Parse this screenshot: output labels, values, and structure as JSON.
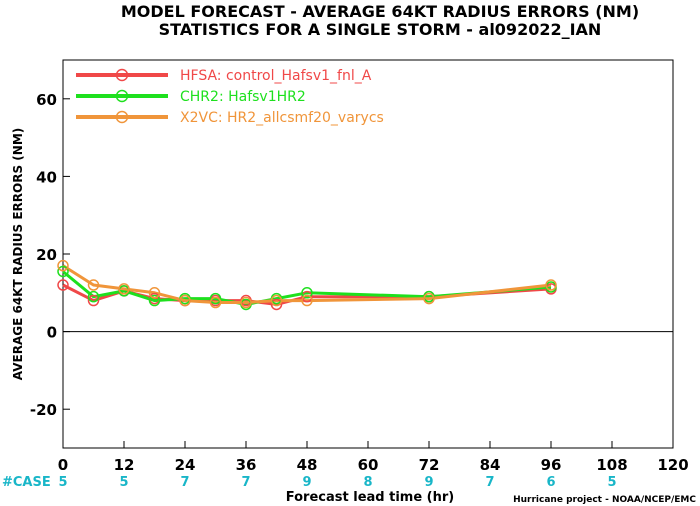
{
  "chart_data": {
    "type": "line",
    "title_line1": "MODEL FORECAST - AVERAGE 64KT RADIUS ERRORS (NM)",
    "title_line2": "STATISTICS FOR A SINGLE STORM - al092022_IAN",
    "ylabel": "AVERAGE 64KT RADIUS ERRORS (NM)",
    "xlabel": "Forecast lead time (hr)",
    "footer": "Hurricane project - NOAA/NCEP/EMC",
    "xlim": [
      0,
      120
    ],
    "ylim": [
      -30,
      70
    ],
    "x_ticks": [
      0,
      12,
      24,
      36,
      48,
      60,
      72,
      84,
      96,
      108,
      120
    ],
    "y_ticks": [
      -20,
      0,
      20,
      40,
      60
    ],
    "zero_line": true,
    "legend_position": "top-left",
    "case_label": "#CASE",
    "case_color": "#19b6c8",
    "cases": [
      {
        "x": 0,
        "n": "5"
      },
      {
        "x": 12,
        "n": "5"
      },
      {
        "x": 24,
        "n": "7"
      },
      {
        "x": 36,
        "n": "7"
      },
      {
        "x": 48,
        "n": "9"
      },
      {
        "x": 60,
        "n": "8"
      },
      {
        "x": 72,
        "n": "9"
      },
      {
        "x": 84,
        "n": "7"
      },
      {
        "x": 96,
        "n": "6"
      },
      {
        "x": 108,
        "n": "5"
      }
    ],
    "series": [
      {
        "name": "HFSA: control_Hafsv1_fnl_A",
        "color": "#f04848",
        "points": [
          [
            0,
            12
          ],
          [
            6,
            8
          ],
          [
            12,
            10.5
          ],
          [
            18,
            8.5
          ],
          [
            24,
            8
          ],
          [
            30,
            8
          ],
          [
            36,
            8
          ],
          [
            42,
            7
          ],
          [
            48,
            9
          ],
          [
            72,
            9
          ],
          [
            96,
            11
          ]
        ]
      },
      {
        "name": "CHR2: Hafsv1HR2",
        "color": "#1ee01e",
        "points": [
          [
            0,
            15.5
          ],
          [
            6,
            9
          ],
          [
            12,
            10.5
          ],
          [
            18,
            8
          ],
          [
            24,
            8.5
          ],
          [
            30,
            8.5
          ],
          [
            36,
            7
          ],
          [
            42,
            8.5
          ],
          [
            48,
            10
          ],
          [
            72,
            9
          ],
          [
            96,
            11.5
          ]
        ]
      },
      {
        "name": "X2VC: HR2_allcsmf20_varycs",
        "color": "#f0953a",
        "points": [
          [
            0,
            17
          ],
          [
            6,
            12
          ],
          [
            12,
            11
          ],
          [
            18,
            10
          ],
          [
            24,
            8
          ],
          [
            30,
            7.5
          ],
          [
            36,
            7.5
          ],
          [
            42,
            8
          ],
          [
            48,
            8
          ],
          [
            72,
            8.5
          ],
          [
            96,
            12
          ]
        ]
      }
    ]
  }
}
